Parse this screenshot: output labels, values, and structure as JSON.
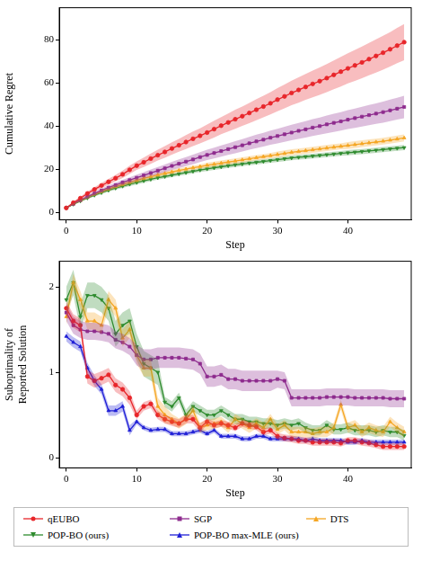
{
  "chart_data": [
    {
      "type": "line",
      "x_label": "Step",
      "y_label": [
        "Cumulative Regret"
      ],
      "xlim": [
        -1,
        49
      ],
      "xticks": [
        0,
        10,
        20,
        30,
        40
      ],
      "ylim": [
        -3.5,
        95
      ],
      "yticks": [
        0,
        20,
        40,
        60,
        80
      ],
      "grid": false,
      "x": [
        0,
        1,
        2,
        3,
        4,
        5,
        6,
        7,
        8,
        9,
        10,
        11,
        12,
        13,
        14,
        15,
        16,
        17,
        18,
        19,
        20,
        21,
        22,
        23,
        24,
        25,
        26,
        27,
        28,
        29,
        30,
        31,
        32,
        33,
        34,
        35,
        36,
        37,
        38,
        39,
        40,
        41,
        42,
        43,
        44,
        45,
        46,
        47,
        48
      ],
      "series": [
        {
          "name": "qEUBO",
          "color": "#e8262a",
          "marker": "circle",
          "values": [
            2.0,
            4.4,
            6.5,
            8.7,
            10.6,
            12.4,
            14.1,
            15.8,
            17.6,
            19.7,
            21.6,
            23.2,
            24.9,
            26.5,
            28.0,
            29.6,
            31.1,
            32.6,
            34.1,
            35.5,
            37.0,
            38.6,
            40.2,
            41.7,
            43.2,
            44.6,
            46.1,
            47.6,
            49.1,
            50.6,
            52.3,
            53.8,
            55.4,
            56.8,
            58.2,
            59.6,
            60.9,
            62.3,
            63.8,
            65.3,
            66.8,
            68.2,
            69.6,
            71.1,
            72.6,
            74.1,
            75.7,
            77.4,
            79.0
          ],
          "error": [
            0.3,
            0.5,
            0.7,
            0.9,
            1.0,
            1.2,
            1.4,
            1.5,
            1.7,
            1.9,
            2.0,
            2.2,
            2.4,
            2.5,
            2.7,
            2.9,
            3.0,
            3.2,
            3.4,
            3.5,
            3.7,
            3.9,
            4.0,
            4.2,
            4.4,
            4.5,
            4.7,
            4.9,
            5.0,
            5.2,
            5.4,
            5.5,
            5.7,
            5.9,
            6.0,
            6.2,
            6.4,
            6.5,
            6.7,
            6.9,
            7.0,
            7.2,
            7.4,
            7.5,
            7.7,
            7.9,
            8.0,
            8.2,
            8.4
          ]
        },
        {
          "name": "SGP",
          "color": "#8e2c8e",
          "marker": "square",
          "values": [
            2.0,
            3.9,
            5.6,
            7.2,
            8.7,
            10.1,
            11.4,
            12.6,
            13.8,
            14.9,
            16.0,
            17.1,
            18.2,
            19.3,
            20.4,
            21.5,
            22.5,
            23.5,
            24.5,
            25.6,
            26.6,
            27.5,
            28.4,
            29.3,
            30.2,
            31.1,
            32.0,
            32.9,
            33.7,
            34.6,
            35.4,
            36.2,
            37.0,
            37.8,
            38.5,
            39.3,
            40.0,
            40.8,
            41.5,
            42.2,
            43.0,
            43.7,
            44.4,
            45.1,
            45.8,
            46.5,
            47.3,
            48.1,
            48.9
          ],
          "error": [
            0.3,
            0.4,
            0.5,
            0.7,
            0.8,
            0.9,
            1.0,
            1.1,
            1.2,
            1.3,
            1.4,
            1.5,
            1.6,
            1.7,
            1.8,
            1.9,
            2.0,
            2.1,
            2.2,
            2.3,
            2.4,
            2.5,
            2.6,
            2.7,
            2.8,
            2.9,
            3.0,
            3.1,
            3.2,
            3.3,
            3.4,
            3.5,
            3.6,
            3.7,
            3.8,
            3.9,
            4.0,
            4.1,
            4.2,
            4.3,
            4.4,
            4.5,
            4.6,
            4.7,
            4.8,
            4.9,
            5.0,
            5.1,
            5.2
          ]
        },
        {
          "name": "DTS",
          "color": "#f5a623",
          "marker": "triangle",
          "values": [
            2.0,
            3.8,
            5.4,
            6.9,
            8.3,
            9.6,
            10.8,
            11.9,
            12.9,
            13.9,
            14.8,
            15.7,
            16.5,
            17.3,
            18.0,
            18.7,
            19.4,
            20.0,
            20.6,
            21.2,
            21.8,
            22.3,
            22.8,
            23.3,
            23.8,
            24.3,
            24.8,
            25.3,
            25.8,
            26.3,
            26.8,
            27.3,
            27.8,
            28.2,
            28.6,
            29.0,
            29.4,
            29.8,
            30.2,
            30.6,
            31.0,
            31.4,
            31.8,
            32.2,
            32.6,
            33.0,
            33.5,
            34.0,
            34.5
          ],
          "error": [
            0.2,
            0.3,
            0.4,
            0.5,
            0.6,
            0.7,
            0.8,
            0.8,
            0.9,
            0.9,
            1.0,
            1.0,
            1.0,
            1.0,
            1.0,
            1.0,
            1.0,
            1.0,
            1.0,
            1.0,
            1.2,
            1.2,
            1.2,
            1.2,
            1.2,
            1.2,
            1.2,
            1.2,
            1.2,
            1.2,
            1.4,
            1.4,
            1.4,
            1.4,
            1.4,
            1.4,
            1.4,
            1.4,
            1.4,
            1.4,
            1.6,
            1.6,
            1.6,
            1.6,
            1.6,
            1.6,
            1.6,
            1.6,
            1.6
          ]
        },
        {
          "name": "POP-BO (ours)",
          "color": "#2e8b2e",
          "marker": "triangle_down",
          "values": [
            2.0,
            3.7,
            5.2,
            6.6,
            7.9,
            9.1,
            10.2,
            11.2,
            12.1,
            13.0,
            13.8,
            14.6,
            15.3,
            16.0,
            16.6,
            17.2,
            17.8,
            18.4,
            19.0,
            19.6,
            20.1,
            20.6,
            21.1,
            21.6,
            22.0,
            22.4,
            22.8,
            23.2,
            23.6,
            24.0,
            24.4,
            24.8,
            25.2,
            25.5,
            25.8,
            26.1,
            26.4,
            26.7,
            27.0,
            27.3,
            27.6,
            27.9,
            28.2,
            28.5,
            28.8,
            29.1,
            29.4,
            29.7,
            30.0
          ],
          "error": [
            0.2,
            0.3,
            0.4,
            0.5,
            0.6,
            0.7,
            0.7,
            0.8,
            0.8,
            0.9,
            0.9,
            0.9,
            0.9,
            0.9,
            0.9,
            0.9,
            0.9,
            0.9,
            0.9,
            0.9,
            1.0,
            1.0,
            1.0,
            1.0,
            1.0,
            1.0,
            1.0,
            1.0,
            1.0,
            1.0,
            1.1,
            1.1,
            1.1,
            1.1,
            1.1,
            1.1,
            1.1,
            1.1,
            1.1,
            1.1,
            1.2,
            1.2,
            1.2,
            1.2,
            1.2,
            1.2,
            1.2,
            1.2,
            1.2
          ]
        }
      ]
    },
    {
      "type": "line",
      "x_label": "Step",
      "y_label": [
        "Suboptimality of",
        "Reported Solution"
      ],
      "xlim": [
        -1,
        49
      ],
      "xticks": [
        0,
        10,
        20,
        30,
        40
      ],
      "ylim": [
        -0.12,
        2.3
      ],
      "yticks": [
        0,
        1,
        2
      ],
      "grid": false,
      "legend": "bottom",
      "x": [
        0,
        1,
        2,
        3,
        4,
        5,
        6,
        7,
        8,
        9,
        10,
        11,
        12,
        13,
        14,
        15,
        16,
        17,
        18,
        19,
        20,
        21,
        22,
        23,
        24,
        25,
        26,
        27,
        28,
        29,
        30,
        31,
        32,
        33,
        34,
        35,
        36,
        37,
        38,
        39,
        40,
        41,
        42,
        43,
        44,
        45,
        46,
        47,
        48
      ],
      "series": [
        {
          "name": "qEUBO",
          "color": "#e8262a",
          "marker": "circle",
          "values": [
            1.75,
            1.6,
            1.55,
            0.95,
            0.9,
            0.93,
            0.97,
            0.85,
            0.8,
            0.7,
            0.5,
            0.6,
            0.63,
            0.5,
            0.45,
            0.42,
            0.4,
            0.45,
            0.45,
            0.35,
            0.42,
            0.38,
            0.4,
            0.38,
            0.35,
            0.4,
            0.38,
            0.36,
            0.3,
            0.32,
            0.25,
            0.23,
            0.22,
            0.2,
            0.2,
            0.18,
            0.18,
            0.18,
            0.18,
            0.17,
            0.2,
            0.2,
            0.18,
            0.17,
            0.15,
            0.13,
            0.13,
            0.13,
            0.13
          ],
          "error": [
            0.08,
            0.08,
            0.08,
            0.08,
            0.08,
            0.08,
            0.08,
            0.08,
            0.08,
            0.08,
            0.05,
            0.05,
            0.05,
            0.05,
            0.05,
            0.05,
            0.05,
            0.05,
            0.05,
            0.05,
            0.04,
            0.04,
            0.04,
            0.04,
            0.04,
            0.04,
            0.04,
            0.04,
            0.04,
            0.04,
            0.04,
            0.04,
            0.04,
            0.04,
            0.04,
            0.04,
            0.04,
            0.04,
            0.04,
            0.04,
            0.04,
            0.04,
            0.04,
            0.04,
            0.04,
            0.04,
            0.04,
            0.04,
            0.04
          ]
        },
        {
          "name": "SGP",
          "color": "#8e2c8e",
          "marker": "square",
          "values": [
            1.7,
            1.55,
            1.5,
            1.48,
            1.48,
            1.47,
            1.45,
            1.38,
            1.35,
            1.3,
            1.2,
            1.15,
            1.15,
            1.17,
            1.17,
            1.17,
            1.17,
            1.16,
            1.15,
            1.1,
            0.95,
            0.95,
            0.97,
            0.92,
            0.92,
            0.9,
            0.9,
            0.9,
            0.9,
            0.9,
            0.92,
            0.9,
            0.7,
            0.7,
            0.7,
            0.7,
            0.7,
            0.71,
            0.71,
            0.71,
            0.71,
            0.7,
            0.7,
            0.7,
            0.7,
            0.7,
            0.69,
            0.69,
            0.69
          ],
          "error": [
            0.1,
            0.1,
            0.1,
            0.1,
            0.1,
            0.1,
            0.1,
            0.1,
            0.1,
            0.1,
            0.12,
            0.12,
            0.12,
            0.12,
            0.12,
            0.12,
            0.12,
            0.12,
            0.12,
            0.12,
            0.12,
            0.12,
            0.12,
            0.12,
            0.12,
            0.12,
            0.12,
            0.12,
            0.12,
            0.12,
            0.1,
            0.1,
            0.1,
            0.1,
            0.1,
            0.1,
            0.1,
            0.1,
            0.1,
            0.1,
            0.1,
            0.1,
            0.1,
            0.1,
            0.1,
            0.1,
            0.1,
            0.1,
            0.1
          ]
        },
        {
          "name": "DTS",
          "color": "#f5a623",
          "marker": "triangle",
          "values": [
            1.65,
            2.05,
            1.85,
            1.6,
            1.6,
            1.55,
            1.85,
            1.75,
            1.4,
            1.5,
            1.2,
            1.05,
            1.05,
            0.6,
            0.5,
            0.45,
            0.4,
            0.45,
            0.55,
            0.35,
            0.38,
            0.4,
            0.42,
            0.35,
            0.45,
            0.4,
            0.35,
            0.4,
            0.35,
            0.45,
            0.33,
            0.38,
            0.3,
            0.3,
            0.3,
            0.28,
            0.3,
            0.3,
            0.35,
            0.62,
            0.35,
            0.38,
            0.3,
            0.35,
            0.32,
            0.3,
            0.42,
            0.35,
            0.3
          ],
          "error": [
            0.1,
            0.1,
            0.1,
            0.1,
            0.1,
            0.1,
            0.1,
            0.1,
            0.1,
            0.1,
            0.1,
            0.1,
            0.1,
            0.1,
            0.1,
            0.06,
            0.06,
            0.06,
            0.06,
            0.06,
            0.06,
            0.06,
            0.06,
            0.06,
            0.06,
            0.06,
            0.06,
            0.06,
            0.06,
            0.06,
            0.06,
            0.06,
            0.06,
            0.06,
            0.06,
            0.06,
            0.06,
            0.06,
            0.06,
            0.06,
            0.06,
            0.06,
            0.06,
            0.06,
            0.06,
            0.06,
            0.06,
            0.06,
            0.06
          ]
        },
        {
          "name": "POP-BO (ours)",
          "color": "#2e8b2e",
          "marker": "triangle_down",
          "values": [
            1.85,
            2.05,
            1.65,
            1.9,
            1.9,
            1.85,
            1.75,
            1.45,
            1.55,
            1.6,
            1.3,
            1.1,
            1.05,
            1.0,
            0.65,
            0.6,
            0.7,
            0.5,
            0.6,
            0.55,
            0.5,
            0.5,
            0.55,
            0.5,
            0.45,
            0.45,
            0.42,
            0.42,
            0.4,
            0.4,
            0.38,
            0.4,
            0.38,
            0.4,
            0.35,
            0.32,
            0.32,
            0.38,
            0.33,
            0.33,
            0.35,
            0.32,
            0.32,
            0.32,
            0.3,
            0.32,
            0.3,
            0.3,
            0.26
          ],
          "error": [
            0.15,
            0.15,
            0.15,
            0.15,
            0.15,
            0.15,
            0.15,
            0.15,
            0.15,
            0.15,
            0.15,
            0.15,
            0.15,
            0.15,
            0.06,
            0.06,
            0.06,
            0.06,
            0.06,
            0.06,
            0.06,
            0.06,
            0.06,
            0.06,
            0.06,
            0.06,
            0.06,
            0.06,
            0.06,
            0.06,
            0.06,
            0.06,
            0.06,
            0.06,
            0.06,
            0.06,
            0.06,
            0.06,
            0.06,
            0.06,
            0.06,
            0.06,
            0.06,
            0.06,
            0.06,
            0.06,
            0.06,
            0.06,
            0.06
          ]
        },
        {
          "name": "POP-BO max-MLE (ours)",
          "color": "#1f1fd6",
          "marker": "triangle",
          "values": [
            1.42,
            1.35,
            1.3,
            1.05,
            0.9,
            0.8,
            0.55,
            0.55,
            0.6,
            0.32,
            0.42,
            0.35,
            0.32,
            0.33,
            0.33,
            0.28,
            0.28,
            0.28,
            0.3,
            0.32,
            0.28,
            0.32,
            0.25,
            0.25,
            0.25,
            0.22,
            0.22,
            0.25,
            0.25,
            0.22,
            0.22,
            0.22,
            0.22,
            0.22,
            0.2,
            0.22,
            0.2,
            0.2,
            0.2,
            0.2,
            0.18,
            0.18,
            0.2,
            0.18,
            0.18,
            0.18,
            0.18,
            0.18,
            0.18
          ],
          "error": [
            0.06,
            0.06,
            0.06,
            0.06,
            0.06,
            0.06,
            0.06,
            0.06,
            0.06,
            0.06,
            0.03,
            0.03,
            0.03,
            0.03,
            0.03,
            0.03,
            0.03,
            0.03,
            0.03,
            0.03,
            0.03,
            0.03,
            0.03,
            0.03,
            0.03,
            0.03,
            0.03,
            0.03,
            0.03,
            0.03,
            0.03,
            0.03,
            0.03,
            0.03,
            0.03,
            0.03,
            0.03,
            0.03,
            0.03,
            0.03,
            0.03,
            0.03,
            0.03,
            0.03,
            0.03,
            0.03,
            0.03,
            0.03,
            0.03
          ]
        }
      ]
    }
  ]
}
